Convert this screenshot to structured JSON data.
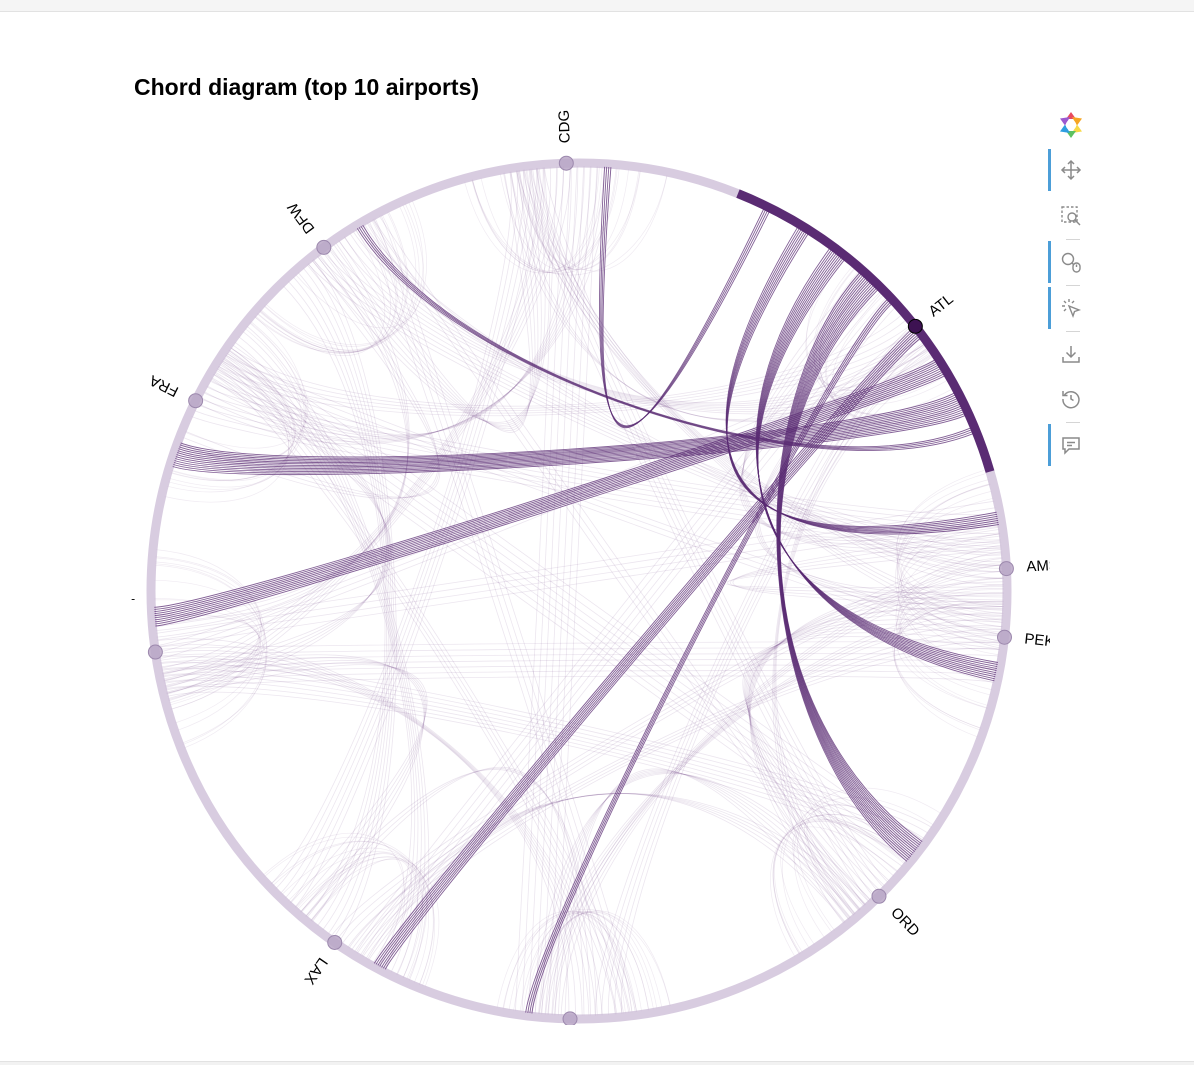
{
  "title": "Chord diagram (top 10 airports)",
  "nodes": [
    {
      "label": "CDG",
      "angle_deg": 91.7
    },
    {
      "label": "ATL",
      "angle_deg": 38.2
    },
    {
      "label": "AMS",
      "angle_deg": 3.0
    },
    {
      "label": "PEK",
      "angle_deg": -6.2
    },
    {
      "label": "ORD",
      "angle_deg": -45.5
    },
    {
      "label": "",
      "angle_deg": -91.2
    },
    {
      "label": "LAX",
      "angle_deg": -124.8
    },
    {
      "label": "",
      "angle_deg": -171.8
    },
    {
      "label": "FRA",
      "angle_deg": 153.6
    },
    {
      "label": "DFW",
      "angle_deg": 126.6
    }
  ],
  "edge_label": "-",
  "highlighted_node": "ATL",
  "colors": {
    "edge": "#6b3a84",
    "edge_highlight": "#5a2b73",
    "ring": "#cbbbd6",
    "node_fill": "#b9a6c6",
    "node_highlight": "#3d1252"
  },
  "toolbar": {
    "tools": [
      {
        "name": "bokeh-logo-icon",
        "active": false
      },
      {
        "name": "pan-icon",
        "active": true
      },
      {
        "name": "box-zoom-icon",
        "active": false
      },
      {
        "name": "wheel-zoom-icon",
        "active": true
      },
      {
        "name": "tap-icon",
        "active": true
      },
      {
        "name": "save-icon",
        "active": false
      },
      {
        "name": "reset-icon",
        "active": false
      },
      {
        "name": "hover-icon",
        "active": true
      }
    ]
  }
}
